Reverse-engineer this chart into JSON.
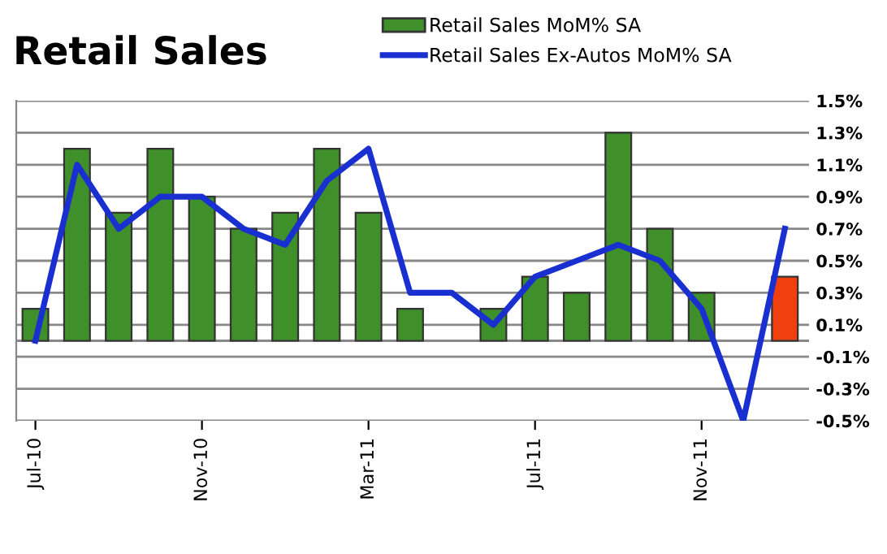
{
  "chart_data": {
    "type": "bar",
    "title": "Retail Sales",
    "categories": [
      "Jul-10",
      null,
      null,
      null,
      "Nov-10",
      null,
      null,
      null,
      "Mar-11",
      null,
      null,
      null,
      "Jul-11",
      null,
      null,
      null,
      "Nov-11",
      null,
      null
    ],
    "series": [
      {
        "name": "Retail Sales MoM% SA",
        "color": "#3f8f2a",
        "colors": [
          "#3f8f2a",
          "#3f8f2a",
          "#3f8f2a",
          "#3f8f2a",
          "#3f8f2a",
          "#3f8f2a",
          "#3f8f2a",
          "#3f8f2a",
          "#3f8f2a",
          "#3f8f2a",
          "#3f8f2a",
          "#3f8f2a",
          "#3f8f2a",
          "#3f8f2a",
          "#3f8f2a",
          "#3f8f2a",
          "#3f8f2a",
          "#3f8f2a",
          "#f04010"
        ],
        "values": [
          0.2,
          1.2,
          0.8,
          1.2,
          0.9,
          0.7,
          0.8,
          1.2,
          0.8,
          0.2,
          null,
          0.2,
          0.4,
          0.3,
          1.3,
          0.7,
          0.3,
          null,
          0.4
        ]
      },
      {
        "name": "Retail Sales Ex-Autos MoM% SA",
        "type": "line",
        "color": "#1a2fd0",
        "values": [
          0.0,
          1.1,
          0.7,
          0.9,
          0.9,
          0.7,
          0.6,
          1.0,
          1.2,
          0.3,
          0.3,
          0.1,
          0.4,
          0.5,
          0.6,
          0.5,
          0.2,
          -0.5,
          0.7
        ]
      }
    ],
    "ylim": [
      -0.5,
      1.5
    ],
    "yticks": [
      {
        "value": -0.5,
        "label": "-0.5%"
      },
      {
        "value": -0.3,
        "label": "-0.3%"
      },
      {
        "value": -0.1,
        "label": "-0.1%"
      },
      {
        "value": 0.1,
        "label": "0.1%"
      },
      {
        "value": 0.3,
        "label": "0.3%"
      },
      {
        "value": 0.5,
        "label": "0.5%"
      },
      {
        "value": 0.7,
        "label": "0.7%"
      },
      {
        "value": 0.9,
        "label": "0.9%"
      },
      {
        "value": 1.1,
        "label": "1.1%"
      },
      {
        "value": 1.3,
        "label": "1.3%"
      },
      {
        "value": 1.5,
        "label": "1.5%"
      }
    ],
    "grid": "y",
    "legend": "top right"
  }
}
